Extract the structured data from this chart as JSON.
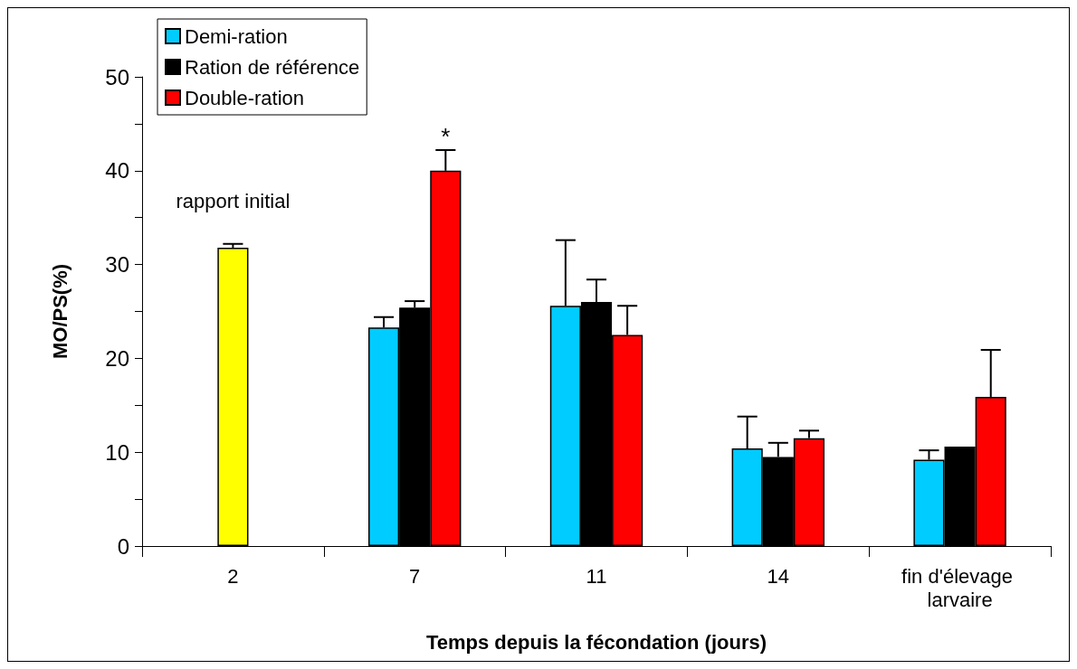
{
  "chart_data": {
    "type": "bar",
    "xlabel": "Temps depuis la fécondation (jours)",
    "ylabel": "MO/PS(%)",
    "categories": [
      "2",
      "7",
      "11",
      "14",
      "fin d'élevage larvaire"
    ],
    "series": [
      {
        "name": "rapport initial",
        "color": "#ffff00",
        "values": [
          31.8,
          null,
          null,
          null,
          null
        ],
        "errors": [
          0.4,
          null,
          null,
          null,
          null
        ]
      },
      {
        "name": "Demi-ration",
        "color": "#00ccff",
        "values": [
          null,
          23.3,
          25.6,
          10.4,
          9.2
        ],
        "errors": [
          null,
          1.1,
          7.0,
          3.4,
          1.0
        ]
      },
      {
        "name": "Ration de référence",
        "color": "#000000",
        "values": [
          null,
          25.4,
          26.0,
          9.5,
          10.6
        ],
        "errors": [
          null,
          0.7,
          2.4,
          1.5,
          null
        ]
      },
      {
        "name": "Double-ration",
        "color": "#ff0000",
        "values": [
          null,
          40.0,
          22.5,
          11.5,
          15.9
        ],
        "errors": [
          null,
          2.2,
          3.1,
          0.8,
          5.0
        ]
      }
    ],
    "ylim": [
      0,
      50
    ],
    "yticks": [
      0,
      {
        "value": 5,
        "label": null
      },
      10,
      {
        "value": 15,
        "label": null
      },
      20,
      {
        "value": 25,
        "label": null
      },
      30,
      {
        "value": 35,
        "label": null
      },
      40,
      {
        "value": 45,
        "label": null
      },
      50
    ],
    "annotations": [
      "*"
    ],
    "legend": "top left",
    "grid": false
  }
}
